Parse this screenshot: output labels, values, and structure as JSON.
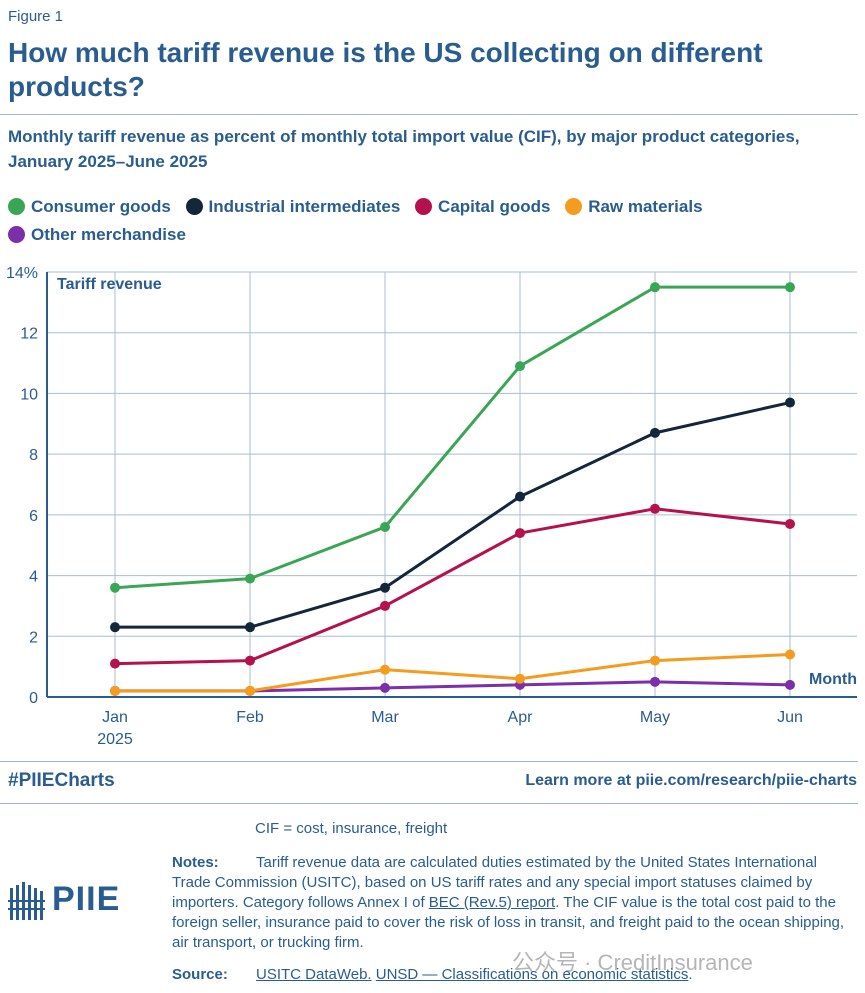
{
  "figure_label": "Figure 1",
  "title": "How much tariff revenue is the US collecting on different products?",
  "subtitle": "Monthly tariff revenue as percent of monthly total import value (CIF), by major product categories, January 2025–June 2025",
  "chart_data": {
    "type": "line",
    "x": [
      "Jan",
      "Feb",
      "Mar",
      "Apr",
      "May",
      "Jun"
    ],
    "x_sublabels": [
      "2025",
      "",
      "",
      "",
      "",
      ""
    ],
    "ylabel": "Tariff revenue",
    "xlabel": "Month",
    "ylim": [
      0,
      14
    ],
    "yticks": [
      "0",
      "2",
      "4",
      "6",
      "8",
      "10",
      "12",
      "14%"
    ],
    "grid": true,
    "legend_position": "top",
    "series": [
      {
        "name": "Consumer goods",
        "color": "#3aa655",
        "values": [
          3.6,
          3.9,
          5.6,
          10.9,
          13.5,
          13.5
        ]
      },
      {
        "name": "Industrial intermediates",
        "color": "#13263a",
        "values": [
          2.3,
          2.3,
          3.6,
          6.6,
          8.7,
          9.7
        ]
      },
      {
        "name": "Capital goods",
        "color": "#b5114f",
        "values": [
          1.1,
          1.2,
          3.0,
          5.4,
          6.2,
          5.7
        ]
      },
      {
        "name": "Raw materials",
        "color": "#f39c1e",
        "values": [
          0.2,
          0.2,
          0.9,
          0.6,
          1.2,
          1.4
        ]
      },
      {
        "name": "Other merchandise",
        "color": "#7b2fa8",
        "values": [
          0.2,
          0.2,
          0.3,
          0.4,
          0.5,
          0.4
        ]
      }
    ]
  },
  "footer": {
    "hashtag": "#PIIECharts",
    "learn_more": "Learn more at piie.com/research/piie-charts"
  },
  "cif_note": "CIF = cost, insurance, freight",
  "notes": {
    "label": "Notes:",
    "text_before_link": "Tariff revenue data are calculated duties estimated by the United States International Trade Commission (USITC), based on US tariff rates and any special import statuses claimed by importers. Category follows Annex I of ",
    "link": "BEC (Rev.5) report",
    "text_after_link": ". The CIF value is the total cost paid to the foreign seller, insurance paid to cover the risk of loss in transit, and freight paid to the ocean shipping, air transport, or trucking firm."
  },
  "source": {
    "label": "Source:",
    "link1": "USITC DataWeb.",
    "link2": "UNSD — Classifications on economic statistics",
    "end": "."
  },
  "logo_text": "PIIE",
  "watermark": "公众号 · CreditInsurance"
}
